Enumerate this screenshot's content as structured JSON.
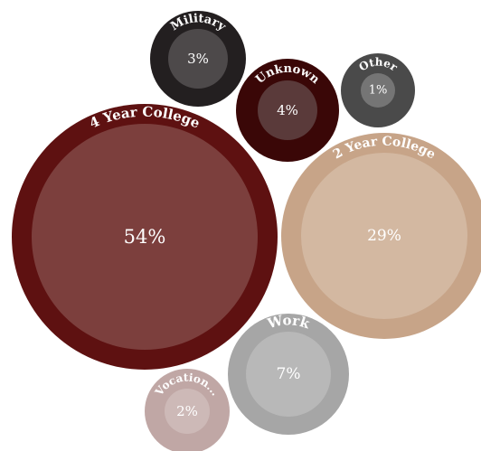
{
  "chart_data": {
    "type": "bubble",
    "title": "",
    "bubbles": [
      {
        "label": "4 Year College",
        "value_label": "54%",
        "value": 54,
        "color_outer": "#5e1111",
        "color_inner": "#7c3f3d"
      },
      {
        "label": "2 Year College",
        "value_label": "29%",
        "value": 29,
        "color_outer": "#c7a488",
        "color_inner": "#d3b8a1"
      },
      {
        "label": "Work",
        "value_label": "7%",
        "value": 7,
        "color_outer": "#a6a6a6",
        "color_inner": "#b8b8b8"
      },
      {
        "label": "Unknown",
        "value_label": "4%",
        "value": 4,
        "color_outer": "#3a0707",
        "color_inner": "#5a3a3a"
      },
      {
        "label": "Military",
        "value_label": "3%",
        "value": 3,
        "color_outer": "#231f20",
        "color_inner": "#4d494a"
      },
      {
        "label": "Vocation...",
        "value_label": "2%",
        "value": 2,
        "color_outer": "#c0a7a5",
        "color_inner": "#cdb9b7"
      },
      {
        "label": "Other",
        "value_label": "1%",
        "value": 1,
        "color_outer": "#4a4a4a",
        "color_inner": "#757575"
      }
    ]
  }
}
